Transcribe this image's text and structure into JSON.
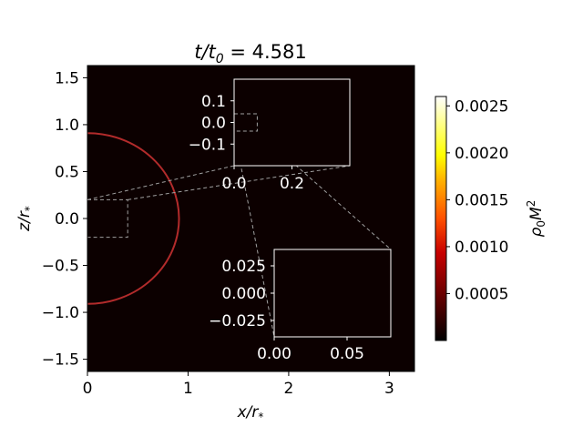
{
  "chart_data": {
    "type": "heatmap",
    "title": {
      "main": "t/t",
      "sub": "0",
      "rest": " = 4.581"
    },
    "xlabel": {
      "main": "x/r",
      "sub": "*"
    },
    "ylabel": {
      "main": "z/r",
      "sub": "*"
    },
    "xlim": [
      0,
      3.25
    ],
    "ylim": [
      -1.63,
      1.63
    ],
    "xticks": [
      0,
      1,
      2,
      3
    ],
    "xtick_labels": [
      "0",
      "1",
      "2",
      "3"
    ],
    "yticks": [
      1.5,
      1.0,
      0.5,
      0.0,
      -0.5,
      -1.0,
      -1.5
    ],
    "ytick_labels": [
      "1.5",
      "1.0",
      "0.5",
      "0.0",
      "−0.5",
      "−1.0",
      "−1.5"
    ],
    "field_color": "#0c0000",
    "boundary": {
      "shape": "semicircle",
      "radius": 0.91,
      "color": "#b22b2b"
    },
    "inset_large": {
      "region": {
        "xlim": [
          0,
          0.4
        ],
        "ylim": [
          -0.2,
          0.2
        ]
      },
      "xlim": [
        0,
        0.4
      ],
      "ylim": [
        -0.2,
        0.2
      ],
      "xticks": [
        0.0,
        0.2
      ],
      "xtick_labels": [
        "0.0",
        "0.2"
      ],
      "yticks": [
        0.1,
        0.0,
        -0.1
      ],
      "ytick_labels": [
        "0.1",
        "0.0",
        "−0.1"
      ]
    },
    "inset_small": {
      "region": {
        "xlim": [
          0,
          0.08
        ],
        "ylim": [
          -0.04,
          0.04
        ]
      },
      "xlim": [
        0,
        0.08
      ],
      "ylim": [
        -0.04,
        0.04
      ],
      "xticks": [
        0.0,
        0.05
      ],
      "xtick_labels": [
        "0.00",
        "0.05"
      ],
      "yticks": [
        0.025,
        0.0,
        -0.025
      ],
      "ytick_labels": [
        "0.025",
        "0.000",
        "−0.025"
      ]
    },
    "colorbar": {
      "label": {
        "main": "ρ",
        "sub": "0",
        "rest": "M",
        "sup": "2"
      },
      "range": [
        0.0,
        0.0026
      ],
      "ticks": [
        0.0005,
        0.001,
        0.0015,
        0.002,
        0.0025
      ],
      "tick_labels": [
        "0.0005",
        "0.0010",
        "0.0015",
        "0.0020",
        "0.0025"
      ],
      "colormap": "hot",
      "stops": [
        "#000000",
        "#c80000",
        "#ff5000",
        "#ffb400",
        "#ffff00",
        "#ffffff"
      ]
    }
  }
}
